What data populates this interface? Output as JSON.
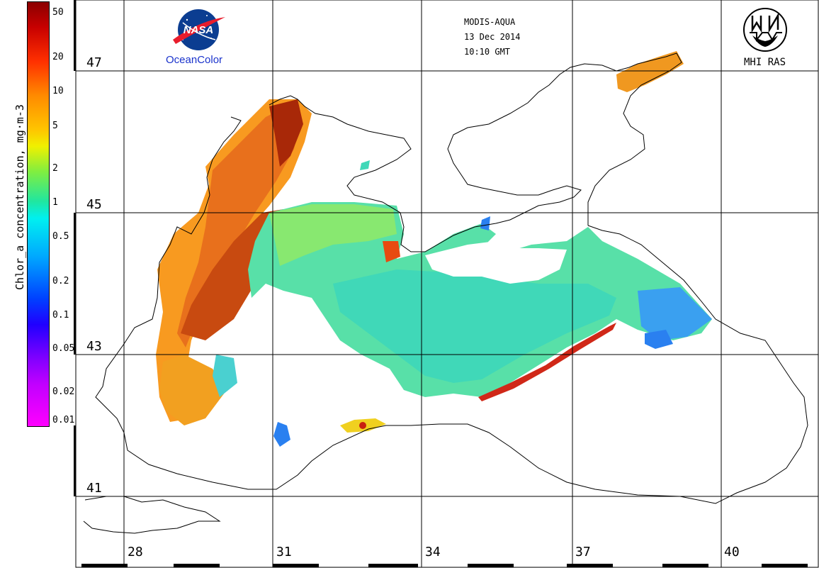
{
  "colorbar": {
    "axis_label": "Chlor_a concentration, mg·m-3",
    "ticks": [
      {
        "label": "50",
        "value": 50
      },
      {
        "label": "20",
        "value": 20
      },
      {
        "label": "10",
        "value": 10
      },
      {
        "label": "5",
        "value": 5
      },
      {
        "label": "2",
        "value": 2
      },
      {
        "label": "1",
        "value": 1
      },
      {
        "label": "0.5",
        "value": 0.5
      },
      {
        "label": "0.2",
        "value": 0.2
      },
      {
        "label": "0.1",
        "value": 0.1
      },
      {
        "label": "0.05",
        "value": 0.05
      },
      {
        "label": "0.02",
        "value": 0.02
      },
      {
        "label": "0.01",
        "value": 0.01
      }
    ],
    "scale": "log",
    "range": [
      0.01,
      50
    ]
  },
  "logo_left": {
    "text": "NASA",
    "caption": "OceanColor"
  },
  "logo_right": {
    "caption": "MHI RAS"
  },
  "header": {
    "sensor": "MODIS-AQUA",
    "date": "13 Dec 2014",
    "time": "10:10 GMT"
  },
  "latitudes": [
    "47",
    "45",
    "43",
    "41"
  ],
  "longitudes": [
    "28",
    "31",
    "34",
    "37",
    "40"
  ],
  "colors": {
    "land_outline": "#000000",
    "background": "#ffffff",
    "nasa_blue": "#0b3d91",
    "caption_blue": "#1a33cc"
  }
}
